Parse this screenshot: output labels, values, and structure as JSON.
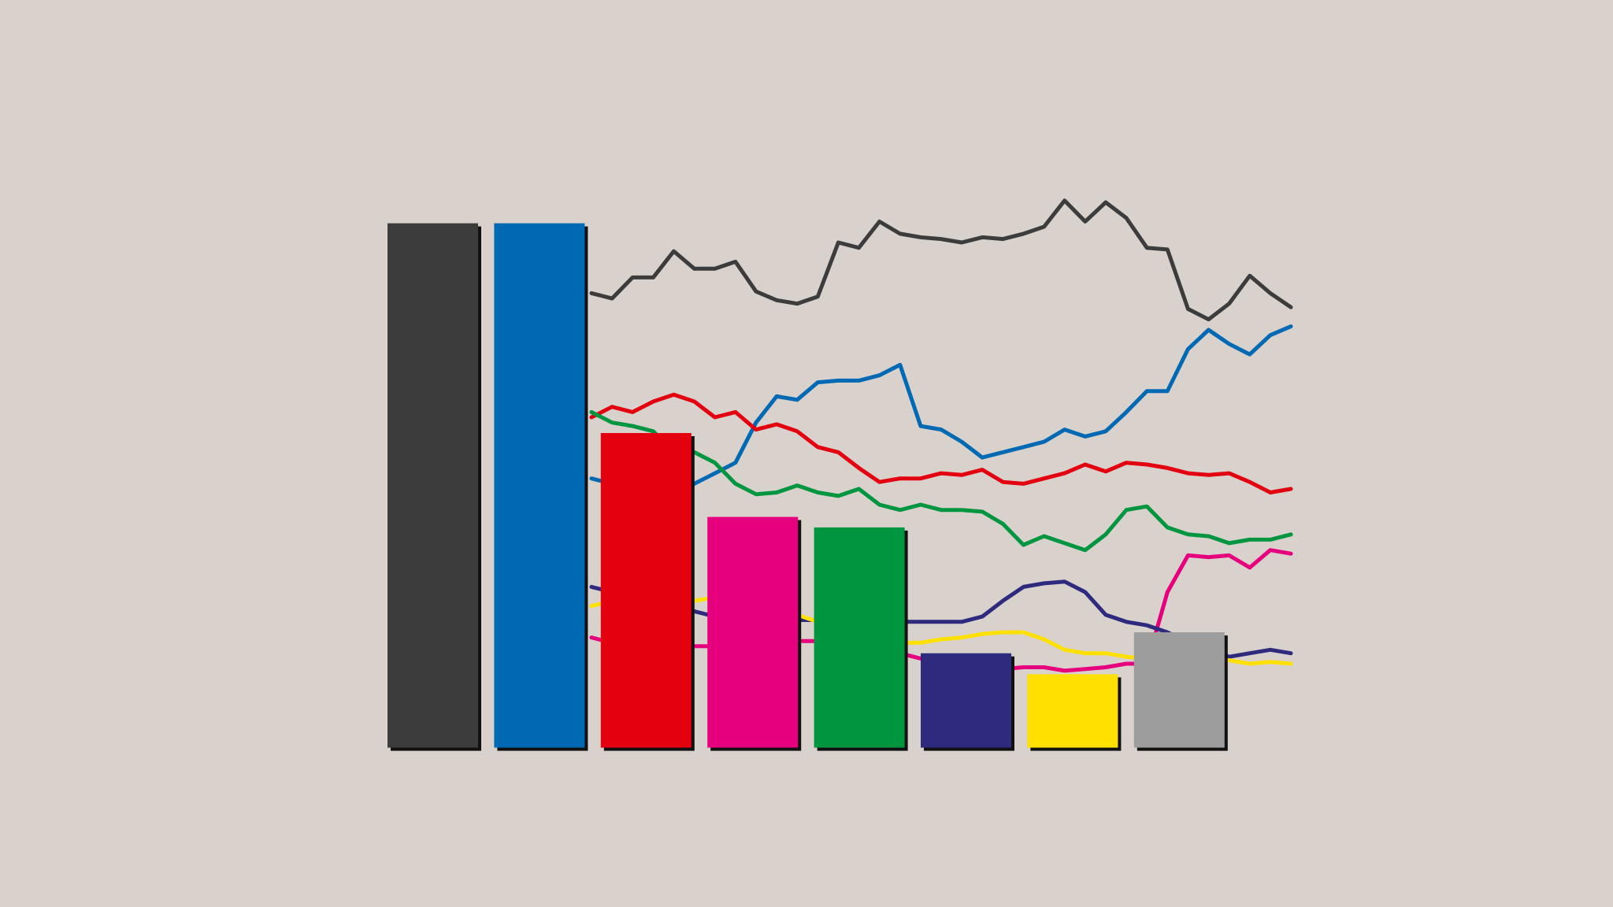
{
  "chart_data": [
    {
      "type": "bar",
      "values": [
        30,
        30,
        18,
        13.2,
        12.6,
        5.4,
        4.2,
        6.6
      ],
      "colors": [
        "#3c3c3c",
        "#0069b4",
        "#e3000f",
        "#e6007e",
        "#009640",
        "#2e2a7e",
        "#ffe000",
        "#9d9d9d"
      ],
      "ylim": [
        0,
        35
      ]
    },
    {
      "type": "line",
      "ylim": [
        0,
        35
      ],
      "series": [
        {
          "color": "#3c3c3c",
          "values": [
            26.0,
            25.7,
            26.9,
            26.9,
            28.4,
            27.4,
            27.4,
            27.8,
            26.1,
            25.6,
            25.4,
            25.8,
            28.9,
            28.6,
            30.1,
            29.4,
            29.2,
            29.1,
            28.9,
            29.2,
            29.1,
            29.4,
            29.8,
            31.3,
            30.1,
            31.2,
            30.3,
            28.6,
            28.5,
            25.1,
            24.5,
            25.4,
            27.0,
            26.0,
            25.2
          ]
        },
        {
          "color": "#0069b4",
          "values": [
            15.4,
            15.1,
            14.8,
            14.8,
            14.8,
            15.1,
            15.7,
            16.3,
            18.6,
            20.1,
            19.9,
            20.9,
            21.0,
            21.0,
            21.3,
            21.9,
            18.4,
            18.2,
            17.5,
            16.6,
            16.9,
            17.2,
            17.5,
            18.2,
            17.8,
            18.1,
            19.2,
            20.4,
            20.4,
            22.8,
            23.9,
            23.1,
            22.5,
            23.6,
            24.1
          ]
        },
        {
          "color": "#e3000f",
          "values": [
            18.9,
            19.5,
            19.2,
            19.8,
            20.2,
            19.8,
            18.9,
            19.2,
            18.2,
            18.5,
            18.1,
            17.2,
            16.9,
            16.0,
            15.2,
            15.4,
            15.4,
            15.7,
            15.6,
            15.9,
            15.2,
            15.1,
            15.4,
            15.7,
            16.2,
            15.8,
            16.3,
            16.2,
            16.0,
            15.7,
            15.6,
            15.7,
            15.2,
            14.6,
            14.8
          ]
        },
        {
          "color": "#009640",
          "values": [
            19.2,
            18.6,
            18.4,
            18.1,
            16.9,
            16.9,
            16.3,
            15.1,
            14.5,
            14.6,
            15.0,
            14.6,
            14.4,
            14.8,
            13.9,
            13.6,
            13.9,
            13.6,
            13.6,
            13.5,
            12.8,
            11.6,
            12.1,
            11.7,
            11.3,
            12.2,
            13.6,
            13.8,
            12.6,
            12.2,
            12.1,
            11.7,
            11.9,
            11.9,
            12.2
          ]
        },
        {
          "color": "#e6007e",
          "values": [
            6.3,
            6.0,
            6.0,
            6.0,
            5.8,
            5.8,
            5.8,
            5.9,
            6.0,
            6.0,
            6.1,
            6.1,
            6.0,
            5.8,
            5.7,
            5.4,
            5.1,
            4.8,
            4.6,
            4.5,
            4.5,
            4.6,
            4.6,
            4.4,
            4.5,
            4.6,
            4.8,
            4.8,
            8.9,
            11.0,
            10.9,
            11.0,
            10.3,
            11.3,
            11.1
          ]
        },
        {
          "color": "#2e2a7e",
          "values": [
            9.2,
            8.9,
            8.6,
            8.4,
            8.1,
            7.8,
            7.5,
            7.5,
            7.4,
            7.3,
            7.3,
            7.3,
            7.2,
            7.2,
            7.2,
            7.2,
            7.2,
            7.2,
            7.2,
            7.5,
            8.4,
            9.2,
            9.4,
            9.5,
            8.9,
            7.6,
            7.2,
            7.0,
            6.6,
            6.0,
            5.6,
            5.2,
            5.4,
            5.6,
            5.4
          ]
        },
        {
          "color": "#ffe000",
          "values": [
            8.1,
            8.4,
            8.6,
            8.4,
            8.1,
            8.4,
            8.6,
            8.4,
            8.1,
            7.9,
            7.6,
            7.2,
            6.8,
            6.6,
            6.3,
            6.0,
            6.0,
            6.2,
            6.3,
            6.5,
            6.6,
            6.6,
            6.2,
            5.6,
            5.4,
            5.4,
            5.2,
            5.1,
            5.1,
            5.1,
            5.1,
            5.0,
            4.8,
            4.9,
            4.8
          ]
        }
      ]
    }
  ]
}
